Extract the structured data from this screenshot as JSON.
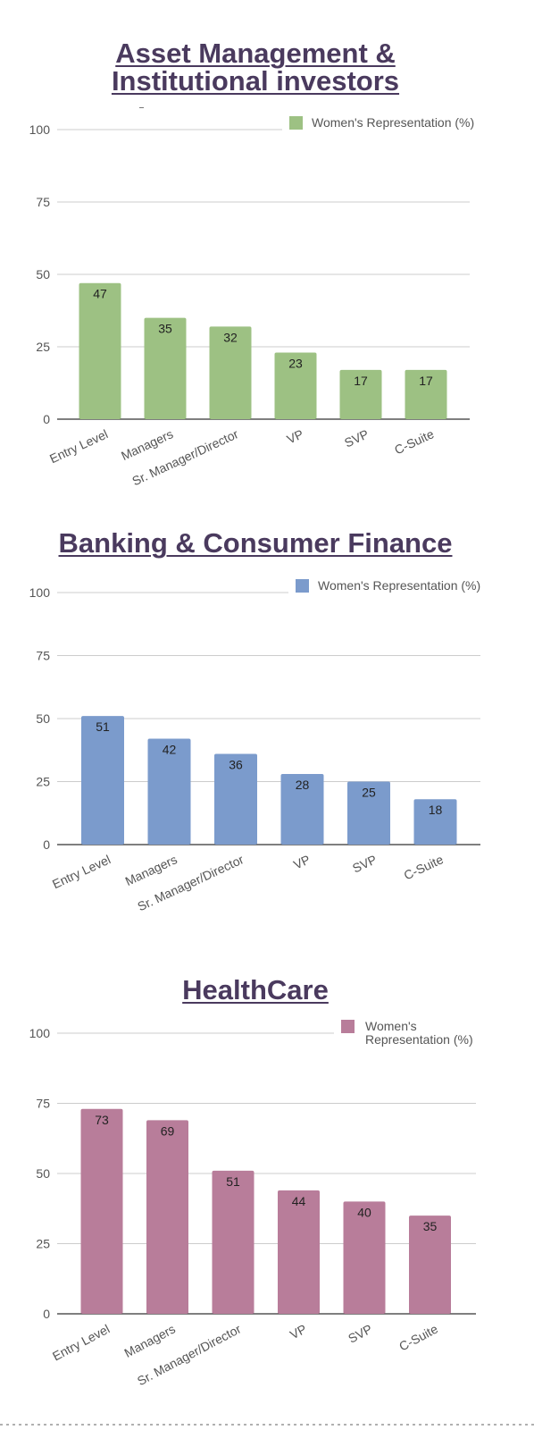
{
  "chart_data": [
    {
      "type": "bar",
      "title": [
        "Asset Management &",
        "Institutional investors"
      ],
      "categories": [
        "Entry Level",
        "Managers",
        "Sr. Manager/Director",
        "VP",
        "SVP",
        "C-Suite"
      ],
      "series": [
        {
          "name": "Women's Representation (%)",
          "values": [
            47,
            35,
            32,
            23,
            17,
            17
          ]
        }
      ],
      "ylim": [
        0,
        100
      ],
      "yticks": [
        "0",
        "25",
        "50",
        "75",
        "100"
      ],
      "legend": "top-right",
      "color": "#9dc183",
      "grid": true
    },
    {
      "type": "bar",
      "title": [
        "Banking & Consumer Finance"
      ],
      "categories": [
        "Entry Level",
        "Managers",
        "Sr. Manager/Director",
        "VP",
        "SVP",
        "C-Suite"
      ],
      "series": [
        {
          "name": "Women's Representation (%)",
          "values": [
            51,
            42,
            36,
            28,
            25,
            18
          ]
        }
      ],
      "ylim": [
        0,
        100
      ],
      "yticks": [
        "0",
        "25",
        "50",
        "75",
        "100"
      ],
      "legend": "top-right",
      "color": "#7b9bcc",
      "grid": true
    },
    {
      "type": "bar",
      "title": [
        "HealthCare"
      ],
      "categories": [
        "Entry Level",
        "Managers",
        "Sr. Manager/Director",
        "VP",
        "SVP",
        "C-Suite"
      ],
      "series": [
        {
          "name": "Women's Representation (%)",
          "values": [
            73,
            69,
            51,
            44,
            40,
            35
          ]
        }
      ],
      "ylim": [
        0,
        100
      ],
      "yticks": [
        "0",
        "25",
        "50",
        "75",
        "100"
      ],
      "legend": "top-right",
      "color": "#b87d9a",
      "grid": true
    }
  ]
}
